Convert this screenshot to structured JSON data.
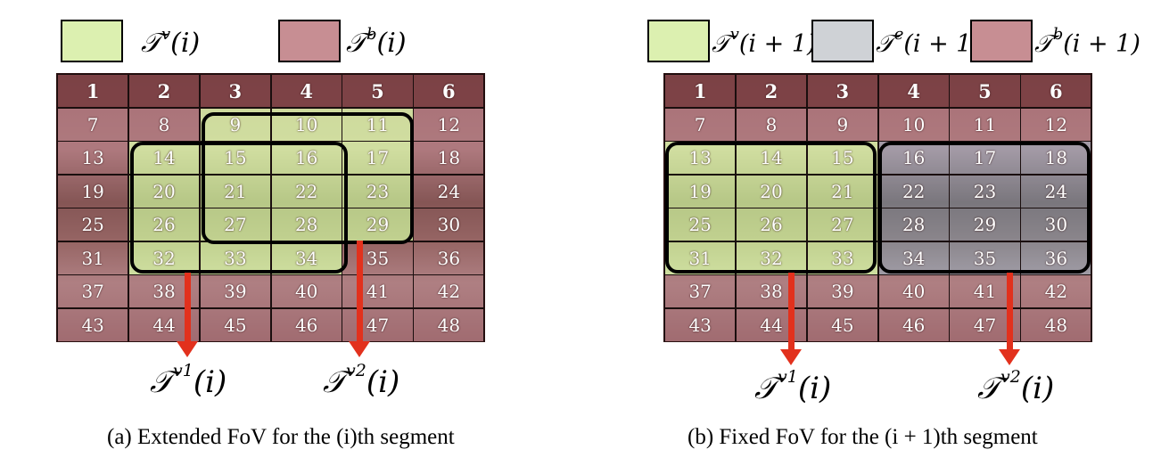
{
  "panel_a": {
    "legend": [
      {
        "symbol": "𝒯",
        "sup": "v",
        "arg": "(i)",
        "color": "#dcf0b0"
      },
      {
        "symbol": "𝒯",
        "sup": "b",
        "arg": "(i)",
        "color": "#c78e93"
      }
    ],
    "header": [
      "1",
      "2",
      "3",
      "4",
      "5",
      "6"
    ],
    "rows": [
      [
        "7",
        "8",
        "9",
        "10",
        "11",
        "12"
      ],
      [
        "13",
        "14",
        "15",
        "16",
        "17",
        "18"
      ],
      [
        "19",
        "20",
        "21",
        "22",
        "23",
        "24"
      ],
      [
        "25",
        "26",
        "27",
        "28",
        "29",
        "30"
      ],
      [
        "31",
        "32",
        "33",
        "34",
        "35",
        "36"
      ],
      [
        "37",
        "38",
        "39",
        "40",
        "41",
        "42"
      ],
      [
        "43",
        "44",
        "45",
        "46",
        "47",
        "48"
      ]
    ],
    "viewport_tiles": [
      "9",
      "10",
      "11",
      "14",
      "15",
      "16",
      "17",
      "20",
      "21",
      "22",
      "23",
      "26",
      "27",
      "28",
      "29",
      "32",
      "33",
      "34"
    ],
    "labels": [
      {
        "symbol": "𝒯",
        "sup": "v1",
        "arg": "(i)"
      },
      {
        "symbol": "𝒯",
        "sup": "v2",
        "arg": "(i)"
      }
    ],
    "caption": "(a) Extended FoV for the (i)th segment"
  },
  "panel_b": {
    "legend": [
      {
        "symbol": "𝒯",
        "sup": "v",
        "arg": "(i + 1)",
        "color": "#dcf0b0"
      },
      {
        "symbol": "𝒯",
        "sup": "e",
        "arg": "(i + 1)",
        "color": "#cfd2d6"
      },
      {
        "symbol": "𝒯",
        "sup": "b",
        "arg": "(i + 1)",
        "color": "#c78e93"
      }
    ],
    "header": [
      "1",
      "2",
      "3",
      "4",
      "5",
      "6"
    ],
    "rows": [
      [
        "7",
        "8",
        "9",
        "10",
        "11",
        "12"
      ],
      [
        "13",
        "14",
        "15",
        "16",
        "17",
        "18"
      ],
      [
        "19",
        "20",
        "21",
        "22",
        "23",
        "24"
      ],
      [
        "25",
        "26",
        "27",
        "28",
        "29",
        "30"
      ],
      [
        "31",
        "32",
        "33",
        "34",
        "35",
        "36"
      ],
      [
        "37",
        "38",
        "39",
        "40",
        "41",
        "42"
      ],
      [
        "43",
        "44",
        "45",
        "46",
        "47",
        "48"
      ]
    ],
    "viewport_tiles": [
      "13",
      "14",
      "15",
      "19",
      "20",
      "21",
      "25",
      "26",
      "27",
      "31",
      "32",
      "33"
    ],
    "extra_tiles": [
      "16",
      "17",
      "18",
      "22",
      "23",
      "24",
      "28",
      "29",
      "30",
      "34",
      "35",
      "36"
    ],
    "labels": [
      {
        "symbol": "𝒯",
        "sup": "v1",
        "arg": "(i)"
      },
      {
        "symbol": "𝒯",
        "sup": "v2",
        "arg": "(i)"
      }
    ],
    "caption": "(b) Fixed FoV for the (i + 1)th segment"
  }
}
